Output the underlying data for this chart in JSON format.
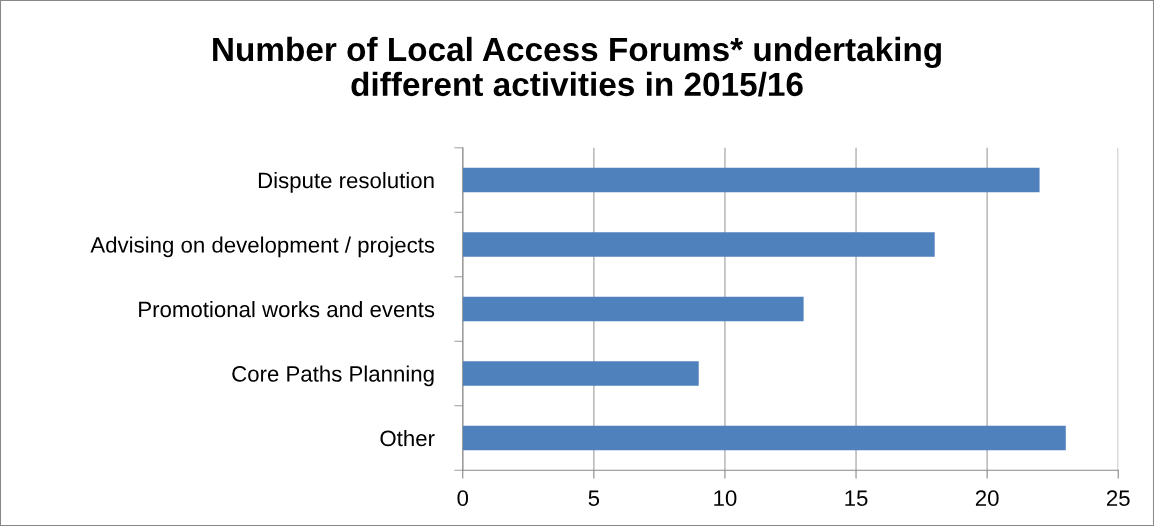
{
  "chart_data": {
    "type": "bar",
    "orientation": "horizontal",
    "title": "Number of Local Access Forums* undertaking\ndifferent activities in 2015/16",
    "categories": [
      "Dispute resolution",
      "Advising on development / projects",
      "Promotional works and events",
      "Core Paths Planning",
      "Other"
    ],
    "values": [
      22,
      18,
      13,
      9,
      23
    ],
    "color": "#4f81bd",
    "xlim": [
      0,
      25
    ],
    "xticks": [
      0,
      5,
      10,
      15,
      20,
      25
    ],
    "grid": "x",
    "legend": false
  }
}
